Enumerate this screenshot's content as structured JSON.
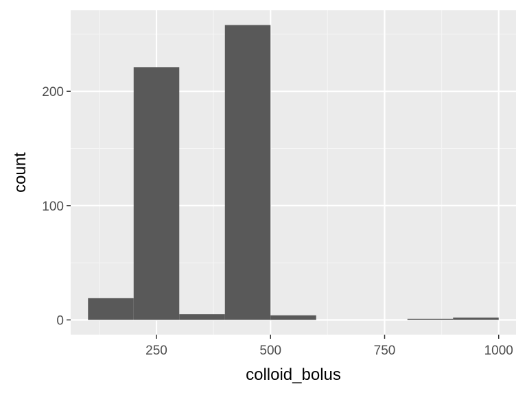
{
  "chart_data": {
    "type": "bar",
    "title": "",
    "xlabel": "colloid_bolus",
    "ylabel": "count",
    "xlim": [
      62,
      1038
    ],
    "ylim": [
      -12.9,
      270.9
    ],
    "xticks": [
      250,
      500,
      750,
      1000
    ],
    "xtick_labels": [
      "250",
      "500",
      "750",
      "1000"
    ],
    "x_minor_gridlines": [
      125,
      375,
      625,
      875
    ],
    "yticks": [
      0,
      100,
      200
    ],
    "ytick_labels": [
      "0",
      "100",
      "200"
    ],
    "y_minor_gridlines": [
      50,
      150,
      250
    ],
    "grid": true,
    "bins": [
      {
        "start": 100,
        "end": 200,
        "count": 19
      },
      {
        "start": 200,
        "end": 300,
        "count": 221
      },
      {
        "start": 300,
        "end": 400,
        "count": 5
      },
      {
        "start": 400,
        "end": 500,
        "count": 258
      },
      {
        "start": 500,
        "end": 600,
        "count": 4
      },
      {
        "start": 600,
        "end": 700,
        "count": 0
      },
      {
        "start": 700,
        "end": 800,
        "count": 0
      },
      {
        "start": 800,
        "end": 900,
        "count": 1
      },
      {
        "start": 900,
        "end": 1000,
        "count": 2
      }
    ],
    "colors": {
      "panel_background": "#ebebeb",
      "grid_major": "#ffffff",
      "grid_minor": "#f5f5f5",
      "bar_fill": "#595959",
      "tick_mark": "#333333"
    }
  }
}
